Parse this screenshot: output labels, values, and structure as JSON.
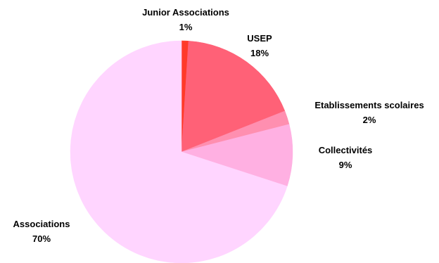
{
  "chart_data": {
    "type": "pie",
    "title": "",
    "slices": [
      {
        "name": "Junior Associations",
        "value": 1,
        "label": "1%",
        "color": "#ff3a2a"
      },
      {
        "name": "USEP",
        "value": 18,
        "label": "18%",
        "color": "#ff6177"
      },
      {
        "name": "Etablissements scolaires",
        "value": 2,
        "label": "2%",
        "color": "#ff8fb0"
      },
      {
        "name": "Collectivités",
        "value": 9,
        "label": "9%",
        "color": "#ffb0e2"
      },
      {
        "name": "Associations",
        "value": 70,
        "label": "70%",
        "color": "#ffd5ff"
      }
    ],
    "start_angle": "12 o'clock",
    "direction": "clockwise",
    "legend": "none",
    "labels": "outside slices, name above percent"
  }
}
